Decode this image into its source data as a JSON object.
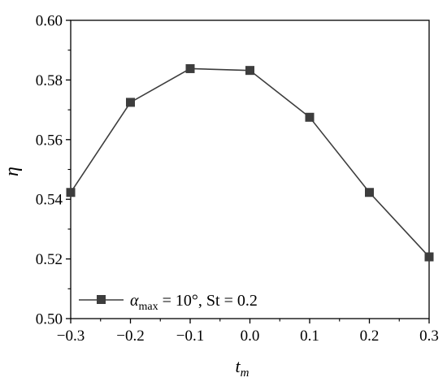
{
  "chart_data": {
    "type": "line",
    "x": [
      -0.3,
      -0.2,
      -0.1,
      0.0,
      0.1,
      0.2,
      0.3
    ],
    "series": [
      {
        "name": "αmax = 10°, St = 0.2",
        "values": [
          0.5423,
          0.5725,
          0.5838,
          0.5832,
          0.5675,
          0.5423,
          0.5207
        ],
        "color": "#3d3d3d",
        "marker": "square"
      }
    ],
    "xlabel": "t",
    "xlabel_sub": "m",
    "ylabel": "η",
    "xlim": [
      -0.3,
      0.3
    ],
    "ylim": [
      0.5,
      0.6
    ],
    "xticks": [
      "−0.3",
      "−0.2",
      "−0.1",
      "0.0",
      "0.1",
      "0.2",
      "0.3"
    ],
    "yticks": [
      "0.50",
      "0.52",
      "0.54",
      "0.56",
      "0.58",
      "0.60"
    ],
    "legend": {
      "position": "bottom-left",
      "alpha_symbol": "α",
      "alpha_sub": "max",
      "rest": " = 10°, St = 0.2"
    },
    "grid": false
  }
}
